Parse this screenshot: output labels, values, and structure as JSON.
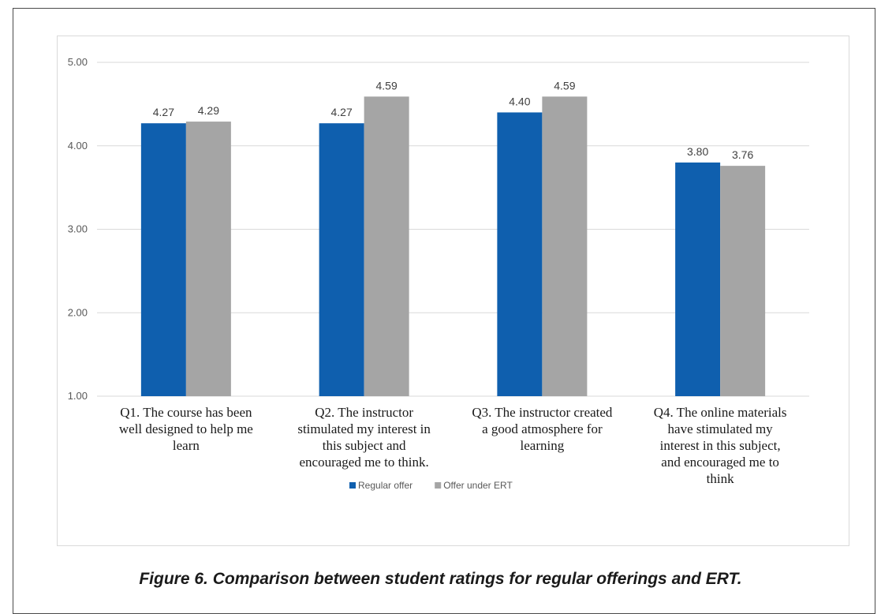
{
  "chart_data": {
    "type": "bar",
    "title": "",
    "xlabel": "",
    "ylabel": "",
    "ylim": [
      1.0,
      5.0
    ],
    "yticks": [
      "1.00",
      "2.00",
      "3.00",
      "4.00",
      "5.00"
    ],
    "grid": true,
    "legend_position": "bottom",
    "categories": [
      [
        "Q1. The course has been",
        "well designed to help me",
        "learn"
      ],
      [
        "Q2. The instructor",
        "stimulated my interest in",
        "this subject and",
        "encouraged me to think."
      ],
      [
        "Q3. The instructor created",
        "a good atmosphere for",
        "learning"
      ],
      [
        "Q4. The online materials",
        "have stimulated my",
        "interest in this subject,",
        "and encouraged me to",
        "think"
      ]
    ],
    "series": [
      {
        "name": "Regular offer",
        "color": "#0f5fae",
        "values": [
          4.27,
          4.27,
          4.4,
          3.8
        ],
        "labels": [
          "4.27",
          "4.27",
          "4.40",
          "3.80"
        ]
      },
      {
        "name": "Offer under ERT",
        "color": "#a5a5a5",
        "values": [
          4.29,
          4.59,
          4.59,
          3.76
        ],
        "labels": [
          "4.29",
          "4.59",
          "4.59",
          "3.76"
        ]
      }
    ]
  },
  "caption": "Figure 6. Comparison between student ratings for regular offerings and ERT."
}
